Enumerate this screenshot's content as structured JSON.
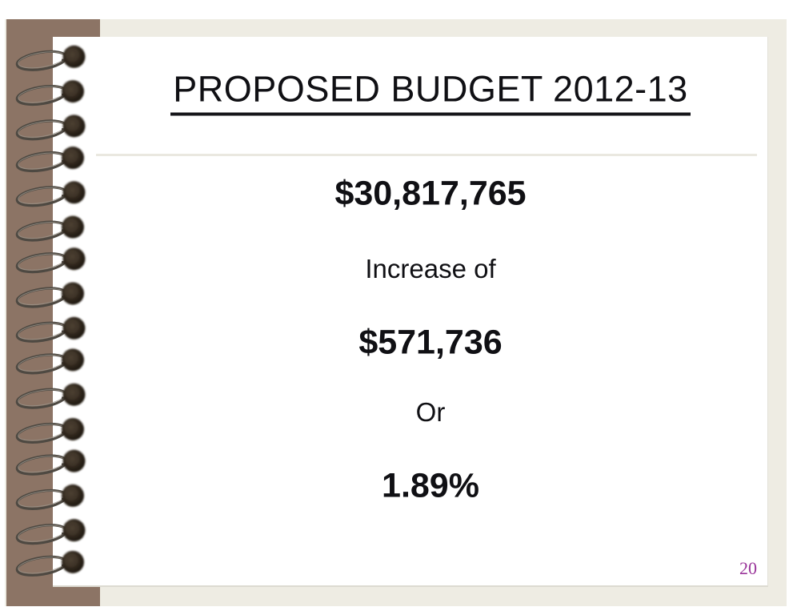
{
  "slide": {
    "title": "PROPOSED BUDGET 2012-13",
    "body_lines": [
      {
        "text": "$30,817,765",
        "emphasis": "bold"
      },
      {
        "text": "Increase of",
        "emphasis": "regular"
      },
      {
        "text": "$571,736",
        "emphasis": "bold"
      },
      {
        "text": "Or",
        "emphasis": "regular"
      },
      {
        "text": "1.89%",
        "emphasis": "bold"
      }
    ],
    "page_number": "20"
  },
  "colors": {
    "background_beige": "#eeece3",
    "notebook_brown": "#8c7465",
    "page_white": "#ffffff",
    "text_black": "#101014",
    "page_number_purple": "#993399"
  },
  "icons": {
    "spiral_binding": "spiral-binding"
  }
}
